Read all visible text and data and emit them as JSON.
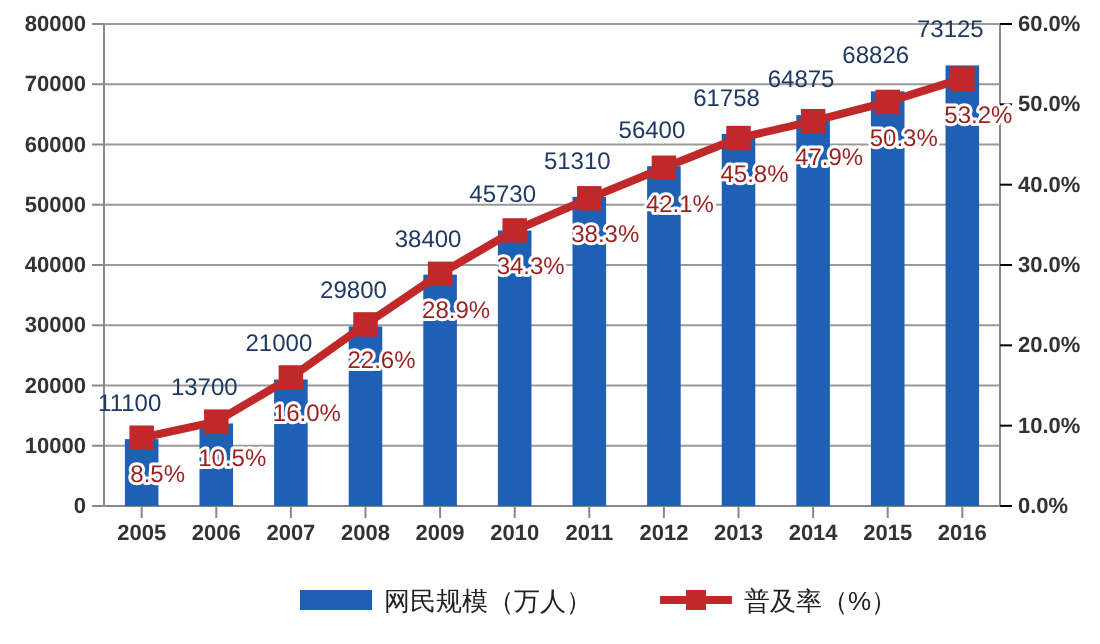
{
  "chart_data": {
    "type": "bar",
    "categories": [
      "2005",
      "2006",
      "2007",
      "2008",
      "2009",
      "2010",
      "2011",
      "2012",
      "2013",
      "2014",
      "2015",
      "2016"
    ],
    "series": [
      {
        "name": "网民规模（万人）",
        "color": "#1f5fb4",
        "values": [
          11100,
          13700,
          21000,
          29800,
          38400,
          45730,
          51310,
          56400,
          61758,
          64875,
          68826,
          73125
        ],
        "value_labels": [
          "11100",
          "13700",
          "21000",
          "29800",
          "38400",
          "45730",
          "51310",
          "56400",
          "61758",
          "64875",
          "68826",
          "73125"
        ]
      },
      {
        "name": "普及率（%）",
        "type": "line",
        "axis": "y2",
        "color": "#c0282a",
        "marker": "square",
        "values": [
          8.5,
          10.5,
          16.0,
          22.6,
          28.9,
          34.3,
          38.3,
          42.1,
          45.8,
          47.9,
          50.3,
          53.2
        ],
        "value_labels": [
          "8.5%",
          "10.5%",
          "16.0%",
          "22.6%",
          "28.9%",
          "34.3%",
          "38.3%",
          "42.1%",
          "45.8%",
          "47.9%",
          "50.3%",
          "53.2%"
        ]
      }
    ],
    "ylim": [
      0,
      80000
    ],
    "yticks": [
      0,
      10000,
      20000,
      30000,
      40000,
      50000,
      60000,
      70000,
      80000
    ],
    "y2lim": [
      0,
      60
    ],
    "y2ticks": [
      {
        "value": 0,
        "label": "0.0%"
      },
      {
        "value": 10,
        "label": "10.0%"
      },
      {
        "value": 20,
        "label": "20.0%"
      },
      {
        "value": 30,
        "label": "30.0%"
      },
      {
        "value": 40,
        "label": "40.0%"
      },
      {
        "value": 50,
        "label": "50.0%"
      },
      {
        "value": 60,
        "label": "60.0%"
      }
    ],
    "grid": "y",
    "legend": "bottom"
  }
}
